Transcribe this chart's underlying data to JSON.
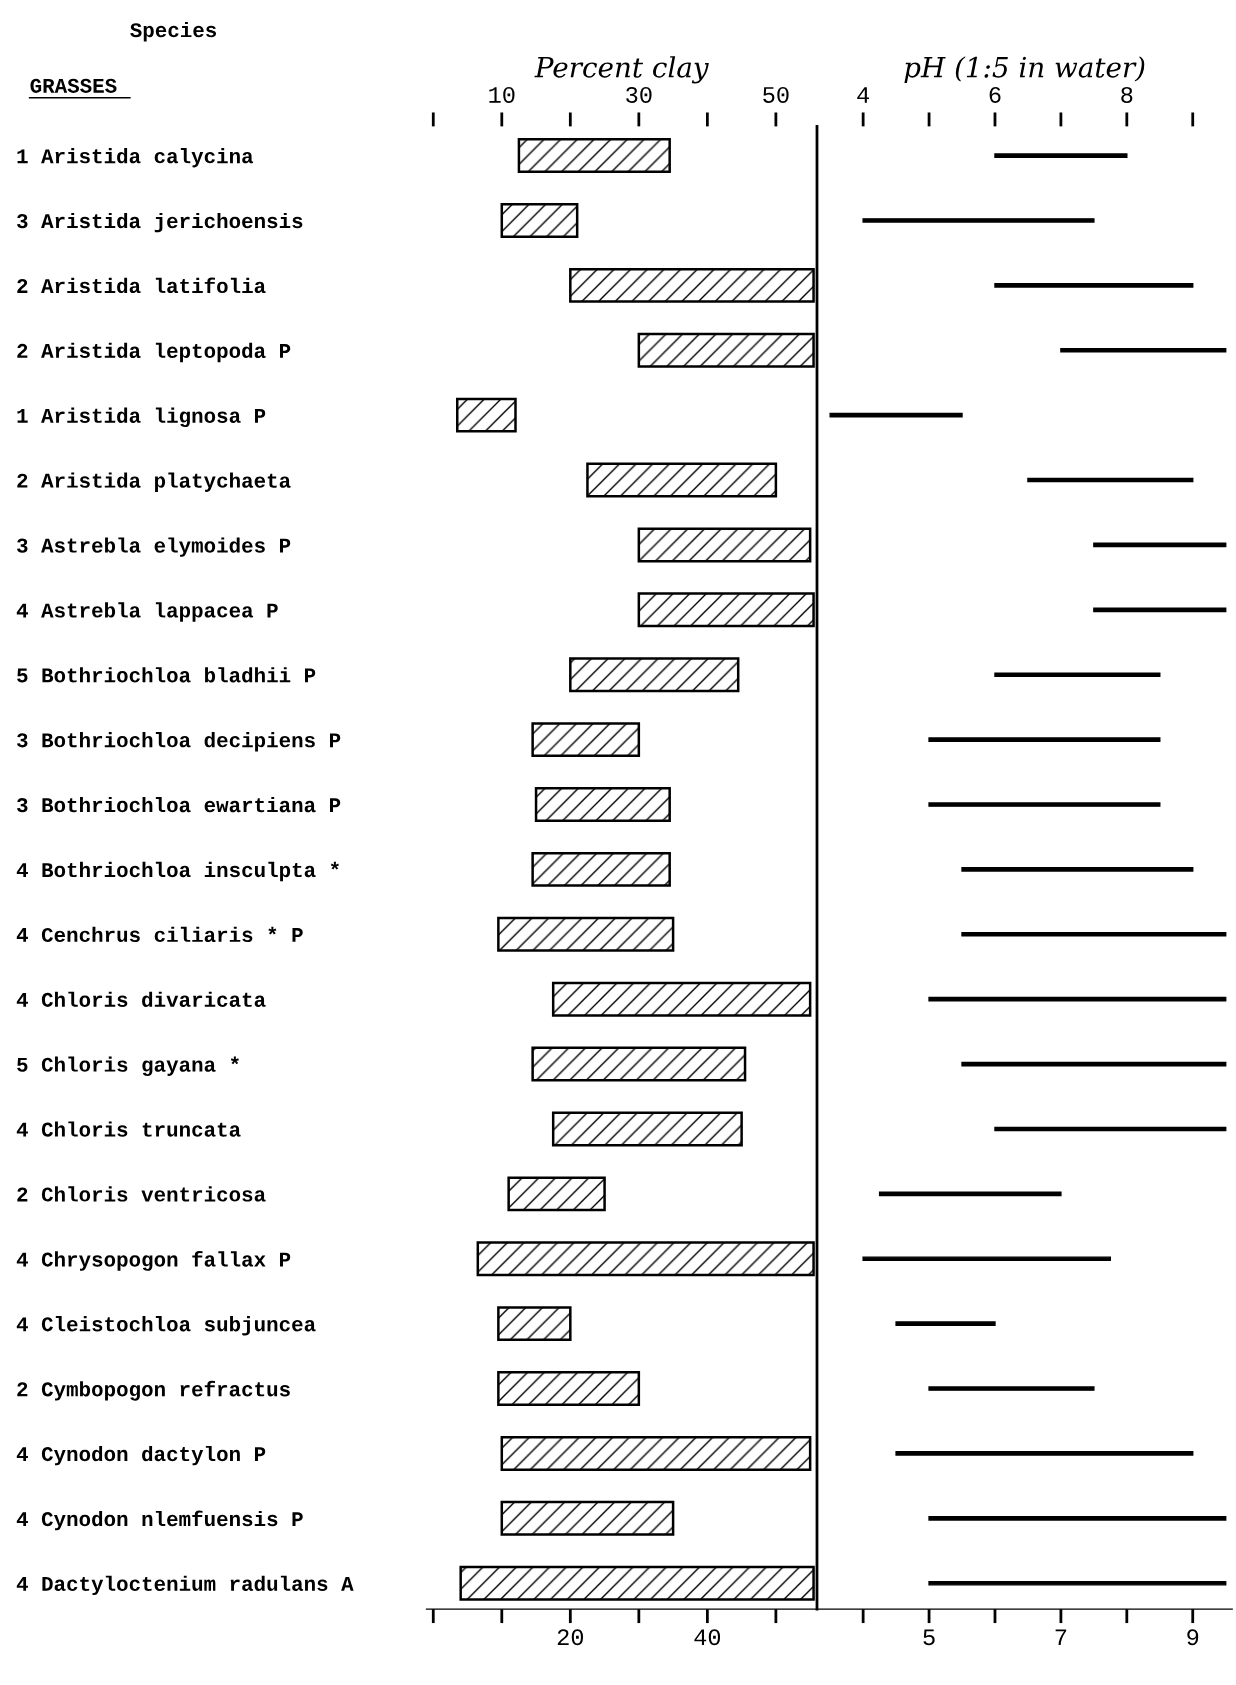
{
  "chart_data": [
    {
      "type": "bar",
      "orientation": "horizontal",
      "annotations": [
        "Species",
        "GRASSES"
      ],
      "x2label": "Percent clay",
      "categories": [
        "1 Aristida calycina",
        "3 Aristida jerichoensis",
        "2 Aristida latifolia",
        "2 Aristida leptopoda P",
        "1 Aristida lignosa P",
        "2 Aristida platychaeta",
        "3 Astrebla elymoides P",
        "4 Astrebla lappacea P",
        "5 Bothriochloa bladhii P",
        "3 Bothriochloa decipiens P",
        "3 Bothriochloa ewartiana P",
        "4 Bothriochloa insculpta *",
        "4 Cenchrus ciliaris * P",
        "4 Chloris divaricata",
        "5 Chloris gayana *",
        "4 Chloris truncata",
        "2 Chloris ventricosa",
        "4 Chrysopogon fallax P",
        "4 Cleistochloa subjuncea",
        "2 Cymbopogon refractus",
        "4 Cynodon dactylon P",
        "4 Cynodon nlemfuensis P",
        "4 Dactyloctenium radulans A"
      ],
      "base": [
        12.5,
        10,
        20,
        30,
        3.5,
        22.5,
        30,
        30,
        20,
        14.5,
        15,
        14.5,
        9.5,
        17.5,
        14.5,
        17.5,
        11,
        6.5,
        9.5,
        9.5,
        10,
        10,
        4
      ],
      "values": [
        22,
        11,
        35.5,
        25.5,
        8.5,
        27.5,
        25,
        25.5,
        24.5,
        15.5,
        19.5,
        20,
        25.5,
        37.5,
        31,
        27.5,
        14,
        49,
        10.5,
        20.5,
        45,
        25,
        51.5
      ],
      "color": "#000000",
      "xlim": [
        -1,
        56
      ],
      "x2lim": [
        -1,
        56
      ],
      "xticks": [
        {
          "value": 0,
          "label": null
        },
        {
          "value": 10,
          "label": null
        },
        20,
        {
          "value": 30,
          "label": null
        },
        40,
        {
          "value": 50,
          "label": null
        }
      ],
      "x2ticks": [
        {
          "value": 0,
          "label": null
        },
        10,
        {
          "value": 20,
          "label": null
        },
        30,
        {
          "value": 40,
          "label": null
        },
        50
      ]
    },
    {
      "type": "bar",
      "orientation": "horizontal",
      "x2label": "pH (1:5 in water)",
      "tick_labels": "x",
      "categories": [
        null,
        null,
        null,
        null,
        null,
        null,
        null,
        null,
        null,
        null,
        null,
        null,
        null,
        null,
        null,
        null,
        null,
        null,
        null,
        null,
        null,
        null,
        null
      ],
      "x2lim": [
        3.3,
        9.6
      ],
      "base": [
        6,
        4,
        6,
        7,
        3.5,
        6.5,
        7.5,
        7.5,
        6,
        5,
        5,
        5.5,
        5.5,
        5,
        5.5,
        6,
        4.25,
        4,
        4.5,
        5,
        4.5,
        5,
        5
      ],
      "values": [
        2,
        3.5,
        3,
        2.5,
        2,
        2.5,
        2,
        2,
        2.5,
        3.5,
        3.5,
        3.5,
        4,
        4.5,
        4,
        3.5,
        2.75,
        3.75,
        1.5,
        2.5,
        4.5,
        4.5,
        4.5
      ],
      "color": "#000000",
      "xlim": [
        3.3,
        9.6
      ],
      "xticks": [
        {
          "value": 4,
          "label": null
        },
        5,
        {
          "value": 6,
          "label": null
        },
        7,
        {
          "value": 8,
          "label": null
        },
        9
      ],
      "x2ticks": [
        4,
        {
          "value": 5,
          "label": null
        },
        6,
        {
          "value": 7,
          "label": null
        },
        8,
        {
          "value": 9,
          "label": null
        }
      ]
    }
  ]
}
